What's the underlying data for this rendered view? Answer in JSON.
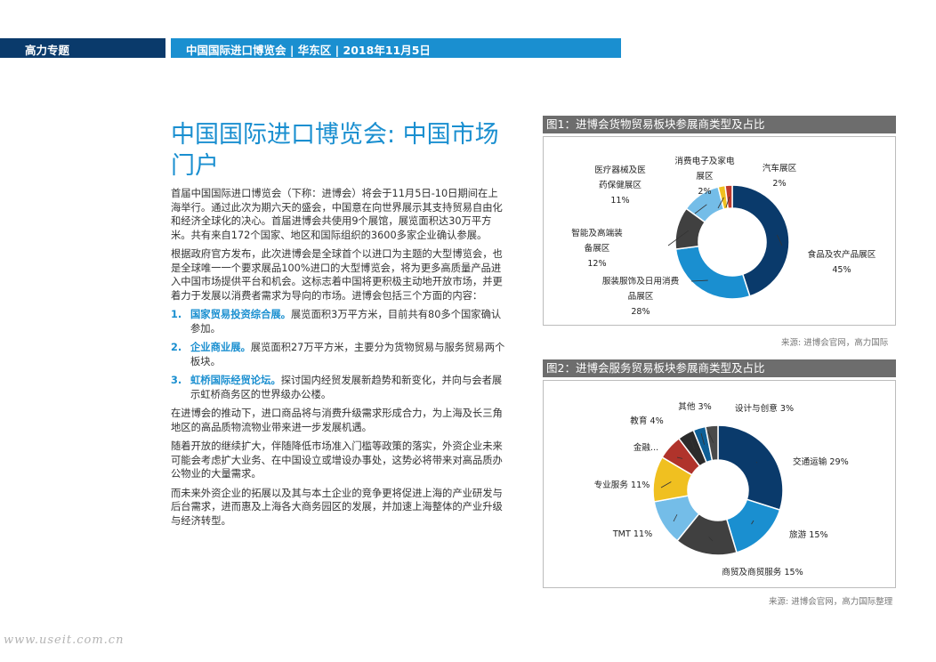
{
  "header": {
    "section": "高力专题",
    "banner": "中国国际进口博览会 | 华东区 | 2018年11月5日"
  },
  "article": {
    "title": "中国国际进口博览会: 中国市场门户",
    "para1": "首届中国国际进口博览会（下称：进博会）将会于11月5日-10日期间在上海举行。通过此次为期六天的盛会，中国意在向世界展示其支持贸易自由化和经济全球化的决心。首届进博会共使用9个展馆，展览面积达30万平方米。共有来自172个国家、地区和国际组织的3600多家企业确认参展。",
    "para2": "根据政府官方发布，此次进博会是全球首个以进口为主题的大型博览会，也是全球唯一一个要求展品100%进口的大型博览会，将为更多高质量产品进入中国市场提供平台和机会。这标志着中国将更积极主动地开放市场，并更着力于发展以消费者需求为导向的市场。进博会包括三个方面的内容：",
    "list": [
      {
        "num": "1.",
        "highlight": "国家贸易投资综合展。",
        "text": "展览面积3万平方米，目前共有80多个国家确认参加。"
      },
      {
        "num": "2.",
        "highlight": "企业商业展。",
        "text": "展览面积27万平方米，主要分为货物贸易与服务贸易两个板块。"
      },
      {
        "num": "3.",
        "highlight": "虹桥国际经贸论坛。",
        "text": "探讨国内经贸发展新趋势和新变化，并向与会者展示虹桥商务区的世界级办公楼。"
      }
    ],
    "para3": "在进博会的推动下，进口商品将与消费升级需求形成合力，为上海及长三角地区的高品质物流物业带来进一步发展机遇。",
    "para4": "随着开放的继续扩大，伴随降低市场准入门槛等政策的落实，外资企业未来可能会考虑扩大业务、在中国设立或增设办事处，这势必将带来对高品质办公物业的大量需求。",
    "para5": "而未来外资企业的拓展以及其与本土企业的竞争更将促进上海的产业研发与后台需求，进而惠及上海各大商务园区的发展，并加速上海整体的产业升级与经济转型。"
  },
  "figure1": {
    "title": "图1：进博会货物贸易板块参展商类型及占比",
    "source": "来源: 进博会官网，高力国际"
  },
  "figure2": {
    "title": "图2：进博会服务贸易板块参展商类型及占比",
    "source": "来源: 进博会官网，高力国际整理"
  },
  "watermark": "www.useit.com.cn",
  "chart_data": [
    {
      "type": "pie",
      "title": "图1：进博会货物贸易板块参展商类型及占比",
      "slices": [
        {
          "label": "食品及农产品展区",
          "value": 45,
          "label_text": "45%",
          "color": "#0a3a6b"
        },
        {
          "label": "服装服饰及日用消费品展区",
          "value": 28,
          "label_text": "28%",
          "color": "#1a8fd0"
        },
        {
          "label": "智能及高端装备展区",
          "value": 12,
          "label_text": "12%",
          "color": "#404040"
        },
        {
          "label": "医疗器械及医药保健展区",
          "value": 11,
          "label_text": "11%",
          "color": "#74bde8"
        },
        {
          "label": "消费电子及家电展区",
          "value": 2,
          "label_text": "2%",
          "color": "#f0c020"
        },
        {
          "label": "汽车展区",
          "value": 2,
          "label_text": "2%",
          "color": "#c0392b"
        }
      ]
    },
    {
      "type": "pie",
      "title": "图2：进博会服务贸易板块参展商类型及占比",
      "slices": [
        {
          "label": "交通运输",
          "value": 29,
          "label_text": "交通运输 29%",
          "color": "#0a3a6b"
        },
        {
          "label": "旅游",
          "value": 15,
          "label_text": "旅游 15%",
          "color": "#1a8fd0"
        },
        {
          "label": "商贸及商贸服务",
          "value": 15,
          "label_text": "商贸及商贸服务 15%",
          "color": "#404040"
        },
        {
          "label": "TMT",
          "value": 11,
          "label_text": "TMT 11%",
          "color": "#74bde8"
        },
        {
          "label": "专业服务",
          "value": 11,
          "label_text": "专业服务 11%",
          "color": "#f0c020"
        },
        {
          "label": "金融",
          "value": 6,
          "label_text": "金融...",
          "color": "#b0332b"
        },
        {
          "label": "教育",
          "value": 4,
          "label_text": "教育 4%",
          "color": "#2b2b2b"
        },
        {
          "label": "其他",
          "value": 3,
          "label_text": "其他 3%",
          "color": "#0e5f96"
        },
        {
          "label": "设计与创意",
          "value": 3,
          "label_text": "设计与创意 3%",
          "color": "#4a4a4a"
        }
      ]
    }
  ]
}
